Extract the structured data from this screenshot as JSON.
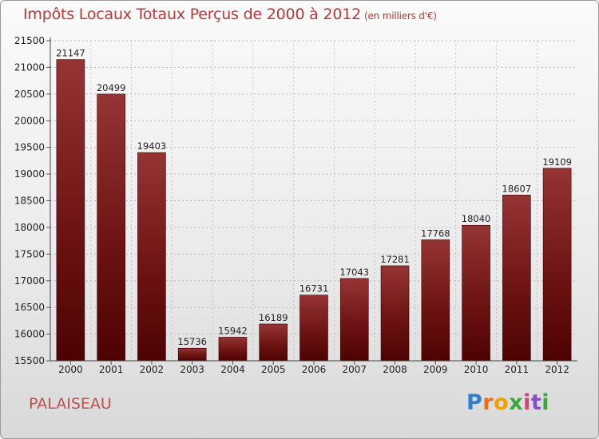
{
  "chart_data": {
    "type": "bar",
    "title": "Impôts Locaux Totaux Perçus de 2000 à 2012",
    "unit_note": "(en milliers d'€)",
    "categories": [
      "2000",
      "2001",
      "2002",
      "2003",
      "2004",
      "2005",
      "2006",
      "2007",
      "2008",
      "2009",
      "2010",
      "2011",
      "2012"
    ],
    "values": [
      21147,
      20499,
      19403,
      15736,
      15942,
      16189,
      16731,
      17043,
      17281,
      17768,
      18040,
      18607,
      19109
    ],
    "ylim": [
      15500,
      21500
    ],
    "yticks": [
      15500,
      16000,
      16500,
      17000,
      17500,
      18000,
      18500,
      19000,
      19500,
      20000,
      20500,
      21000,
      21500
    ],
    "xlabel": "",
    "ylabel": "",
    "grid": "horizontal dotted",
    "bar_color": "#6e1010"
  },
  "city": "PALAISEAU",
  "brand": {
    "name": "Proxiti"
  }
}
